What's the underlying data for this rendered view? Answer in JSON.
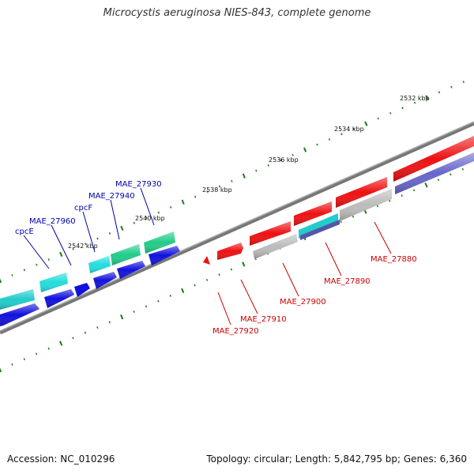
{
  "title": "Microcystis aeruginosa NIES-843, complete genome",
  "footer": {
    "accession": "Accession: NC_010296",
    "topology": "Topology: circular; Length: 5,842,795 bp; Genes: 6,360"
  },
  "colors": {
    "backbone": "#888888",
    "tick": "#1a7a1a",
    "forward_label": "#cc0000",
    "reverse_label": "#0000aa",
    "red": "#ee1111",
    "blue": "#1111dd",
    "cyan": "#22dddd",
    "teal": "#22cc88",
    "gray": "#bbbbbb",
    "purple": "#6666cc"
  },
  "scale_labels": [
    "2532 kbp",
    "2534 kbp",
    "2536 kbp",
    "2538 kbp",
    "2540 kbp",
    "2542 kbp"
  ],
  "gene_labels_forward": [
    "MAE_27880",
    "MAE_27890",
    "MAE_27900",
    "MAE_27910",
    "MAE_27920"
  ],
  "gene_labels_reverse": [
    "MAE_27930",
    "MAE_27940",
    "cpcF",
    "MAE_27960",
    "cpcE"
  ]
}
